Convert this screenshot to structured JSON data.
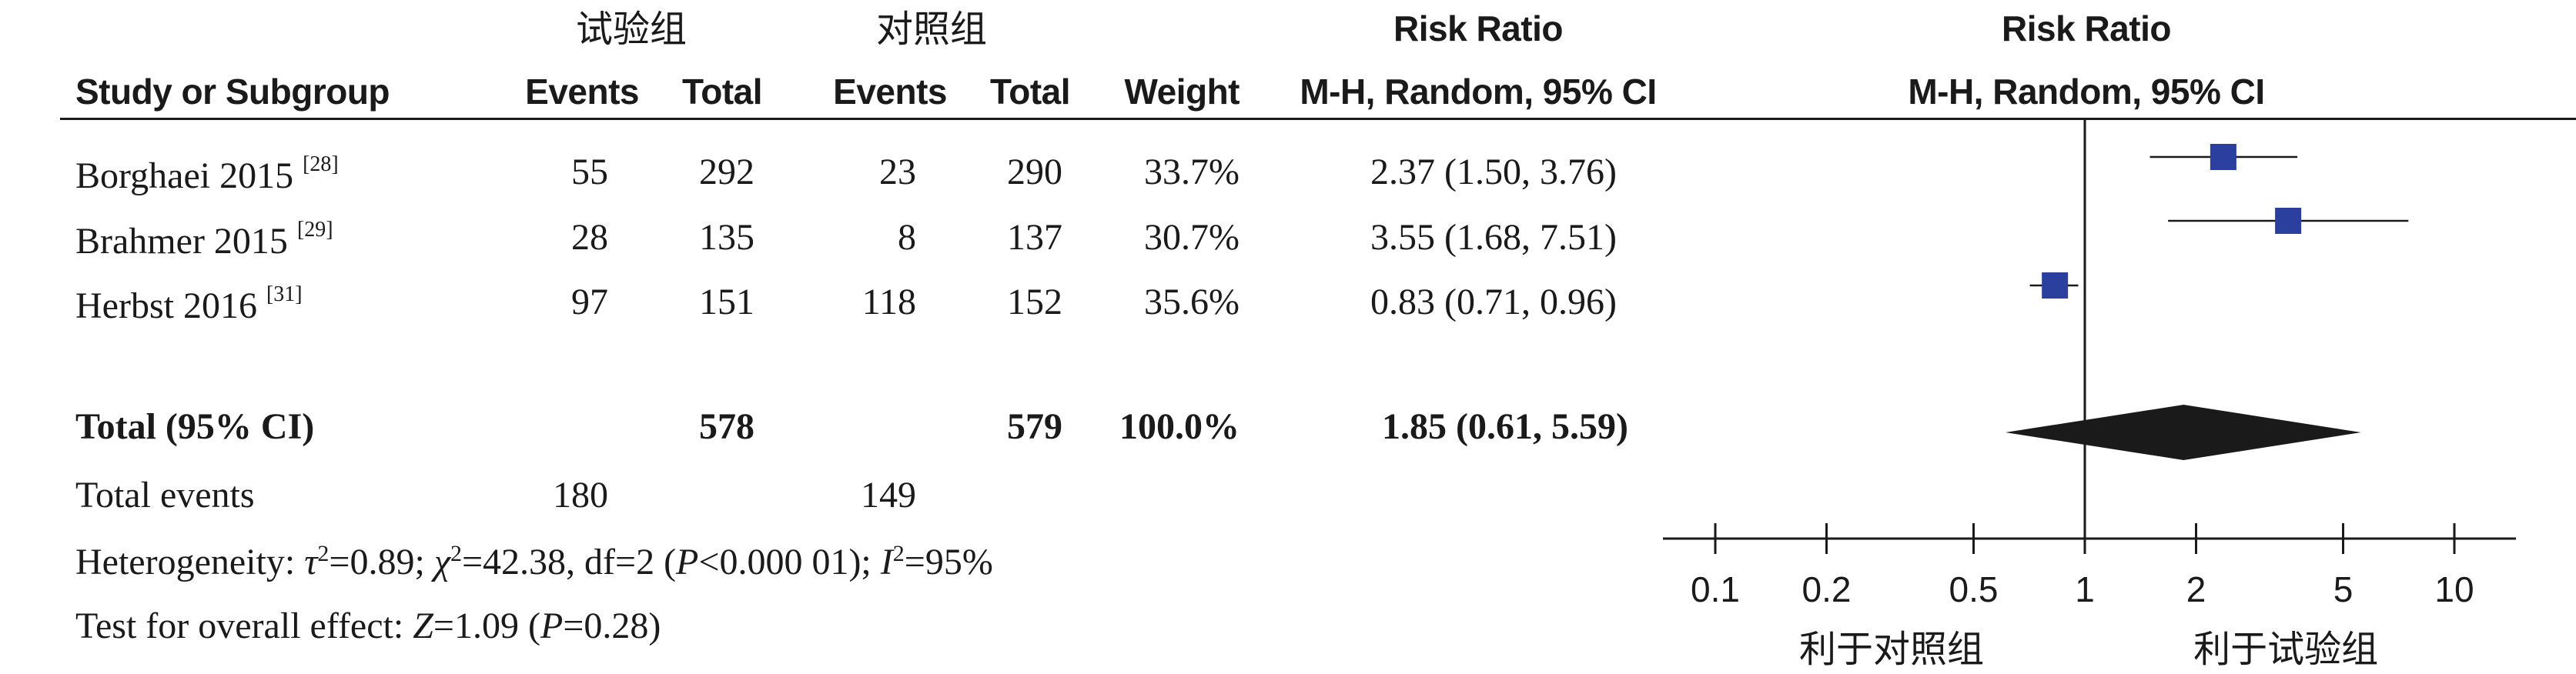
{
  "headers": {
    "group_treatment": "试验组",
    "group_control": "对照组",
    "study": "Study or Subgroup",
    "events_t": "Events",
    "total_t": "Total",
    "events_c": "Events",
    "total_c": "Total",
    "weight": "Weight",
    "rr_title": "Risk Ratio",
    "rr_method": "M-H, Random, 95% CI",
    "plot_title": "Risk Ratio",
    "plot_method": "M-H, Random, 95% CI"
  },
  "studies": [
    {
      "name": "Borghaei 2015",
      "ref": "[28]",
      "events_t": "55",
      "total_t": "292",
      "events_c": "23",
      "total_c": "290",
      "weight": "33.7%",
      "ci_text": "2.37 (1.50, 3.76)"
    },
    {
      "name": "Brahmer 2015",
      "ref": "[29]",
      "events_t": "28",
      "total_t": "135",
      "events_c": "8",
      "total_c": "137",
      "weight": "30.7%",
      "ci_text": "3.55 (1.68, 7.51)"
    },
    {
      "name": "Herbst 2016",
      "ref": "[31]",
      "events_t": "97",
      "total_t": "151",
      "events_c": "118",
      "total_c": "152",
      "weight": "35.6%",
      "ci_text": "0.83 (0.71, 0.96)"
    }
  ],
  "total": {
    "label": "Total (95% CI)",
    "total_t": "578",
    "total_c": "579",
    "weight": "100.0%",
    "ci_text": "1.85 (0.61, 5.59)"
  },
  "total_events": {
    "label": "Total events",
    "events_t": "180",
    "events_c": "149"
  },
  "heterogeneity": {
    "prefix": "Heterogeneity: ",
    "tau_sym": "τ",
    "tau_val": "=0.89; ",
    "chi_sym": "χ",
    "chi_val": "=42.38, df=2 (",
    "p_sym": "P",
    "p_val": "<0.000 01); ",
    "i_sym": "I",
    "i_val": "=95%",
    "sup": "2"
  },
  "overall_effect": {
    "prefix": "Test for overall effect: ",
    "z_sym": "Z",
    "z_val": "=1.09 (",
    "p_sym": "P",
    "p_val": "=0.28)"
  },
  "chart_data": {
    "type": "forest",
    "scale": "log",
    "xlim": [
      0.1,
      10
    ],
    "ticks": [
      0.1,
      0.2,
      0.5,
      1,
      2,
      5,
      10
    ],
    "tick_labels": [
      "0.1",
      "0.2",
      "0.5",
      "1",
      "2",
      "5",
      "10"
    ],
    "favours_left": "利于对照组",
    "favours_right": "利于试验组",
    "marker_color": "#2a3f9e",
    "studies": [
      {
        "rr": 2.37,
        "lo": 1.5,
        "hi": 3.76,
        "weight": 33.7
      },
      {
        "rr": 3.55,
        "lo": 1.68,
        "hi": 7.51,
        "weight": 30.7
      },
      {
        "rr": 0.83,
        "lo": 0.71,
        "hi": 0.96,
        "weight": 35.6
      }
    ],
    "pooled": {
      "rr": 1.85,
      "lo": 0.61,
      "hi": 5.59
    }
  }
}
